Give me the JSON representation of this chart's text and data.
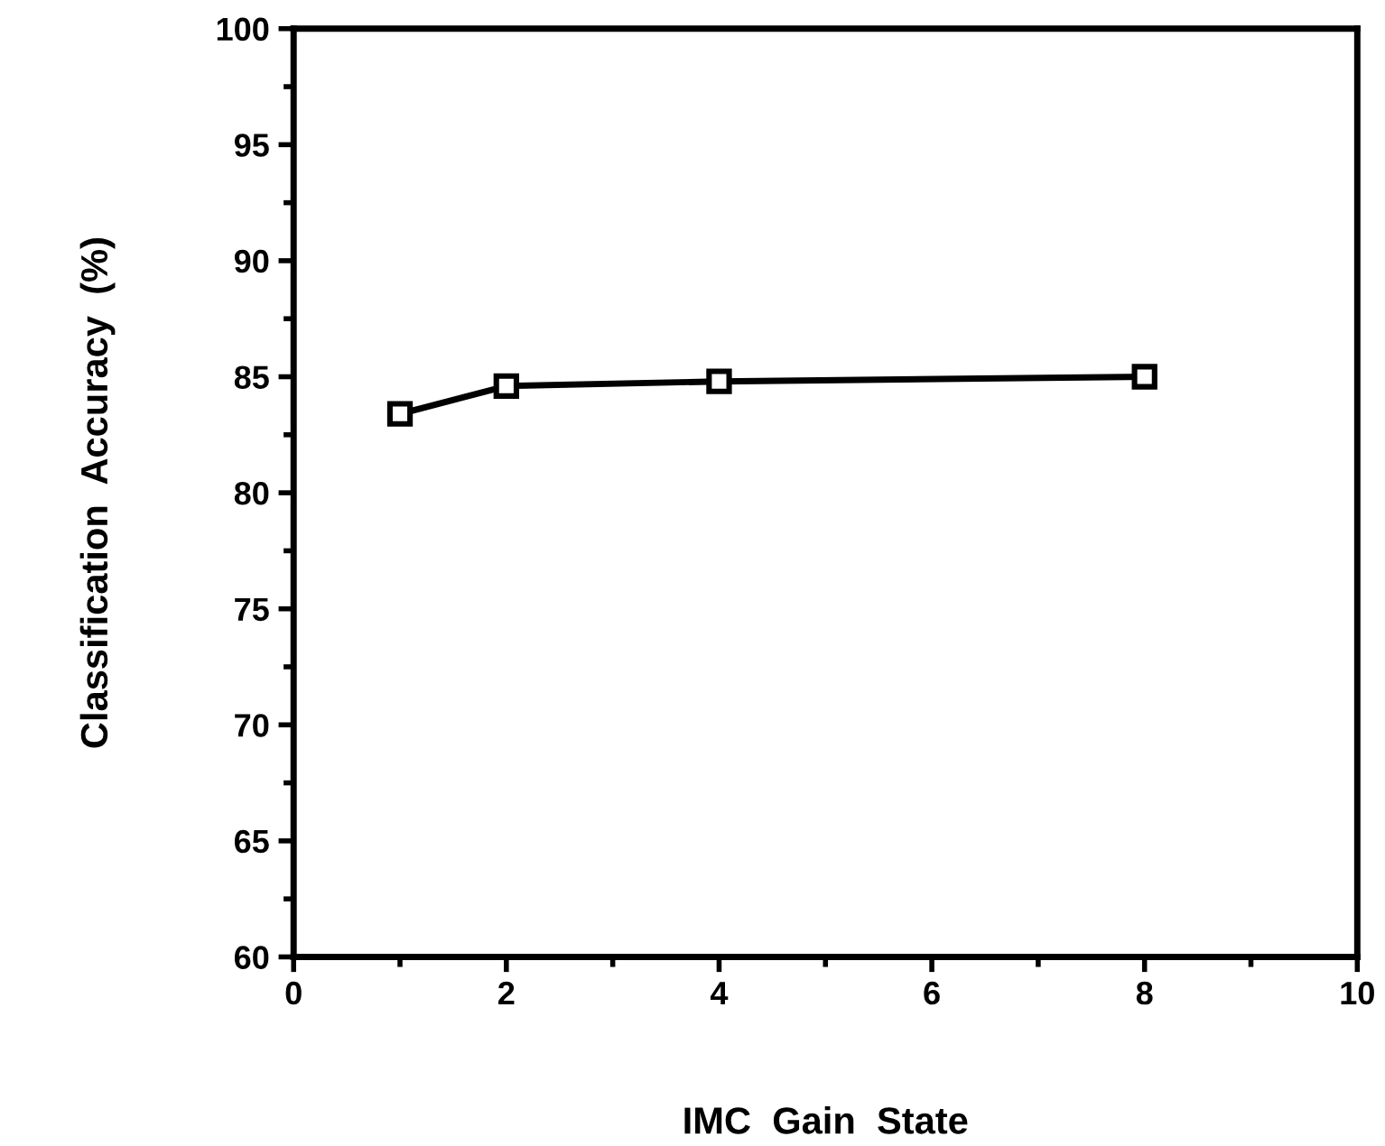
{
  "chart_data": {
    "type": "line",
    "xlabel": "IMC  Gain  State",
    "ylabel": "Classification  Accuracy  (%)",
    "x": [
      1,
      2,
      4,
      8
    ],
    "series": [
      {
        "color": "#000000",
        "values": [
          83.4,
          84.6,
          84.8,
          85.0
        ]
      }
    ],
    "xlim": [
      0,
      10
    ],
    "xticks": [
      0,
      2,
      4,
      6,
      8,
      10
    ],
    "ylim": [
      60,
      100
    ],
    "yticks": [
      60,
      65,
      70,
      75,
      80,
      85,
      90,
      95,
      100
    ],
    "marker": "square",
    "line_style": "solid"
  }
}
